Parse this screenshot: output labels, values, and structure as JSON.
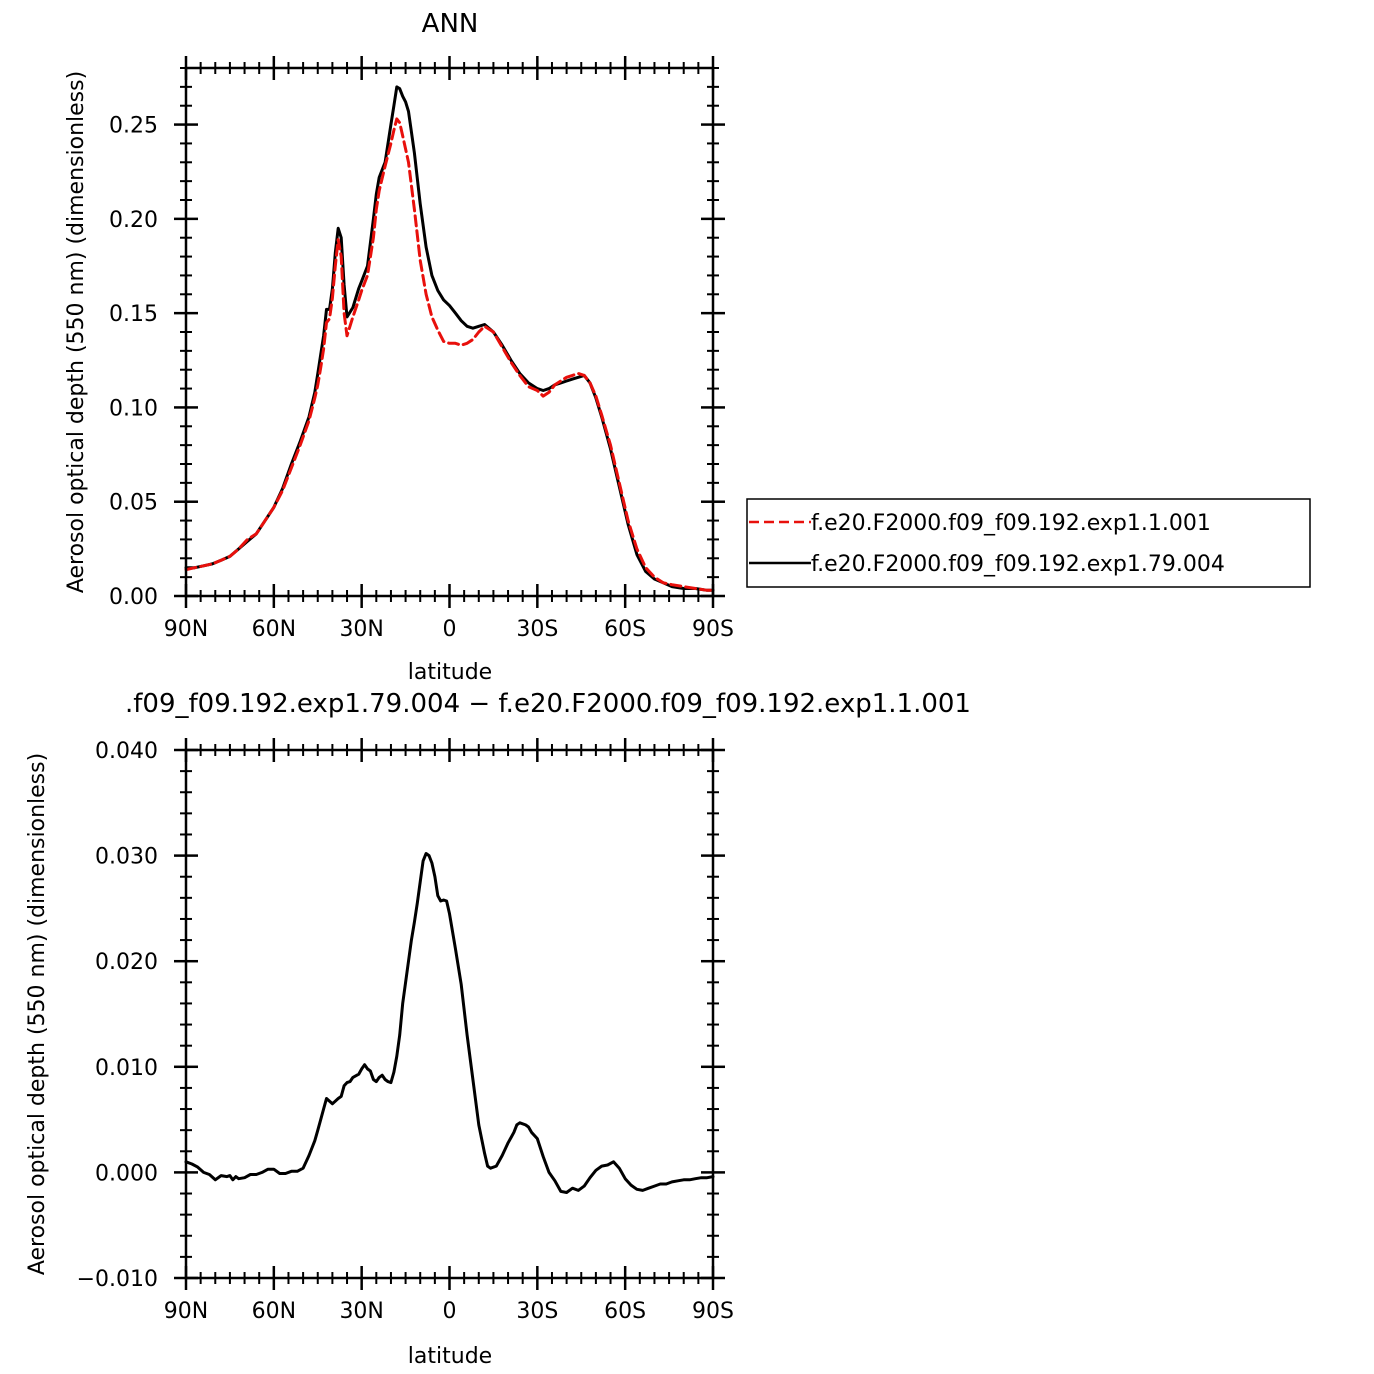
{
  "chart_data": [
    {
      "type": "line",
      "title": "ANN",
      "xlabel": "latitude",
      "ylabel": "Aerosol optical depth (550 nm) (dimensionless)",
      "xlim": [
        90,
        -90
      ],
      "ylim": [
        0,
        0.28
      ],
      "xticks": [
        90,
        60,
        30,
        0,
        -30,
        -60,
        -90
      ],
      "xtick_labels": [
        "90N",
        "60N",
        "30N",
        "0",
        "30S",
        "60S",
        "90S"
      ],
      "yticks": [
        0,
        0.05,
        0.1,
        0.15,
        0.2,
        0.25
      ],
      "ytick_labels": [
        "0.00",
        "0.05",
        "0.10",
        "0.15",
        "0.20",
        "0.25"
      ],
      "legend_position": "right",
      "series": [
        {
          "name": "f.e20.F2000.f09_f09.192.exp1.1.001",
          "color": "#e8100c",
          "dash": "dashed",
          "x": [
            90,
            87,
            84,
            81,
            78,
            75,
            72,
            69,
            66,
            63,
            60,
            57,
            54,
            51,
            48,
            46,
            45,
            44,
            43,
            42,
            41,
            40,
            39,
            38,
            37,
            36,
            35,
            33,
            31,
            30,
            28,
            26,
            25,
            24,
            22,
            20,
            19,
            18,
            17,
            16,
            15,
            14,
            12,
            10,
            8,
            6,
            4,
            2,
            0,
            -2,
            -4,
            -6,
            -8,
            -10,
            -12,
            -15,
            -18,
            -21,
            -24,
            -27,
            -30,
            -32,
            -34,
            -36,
            -38,
            -40,
            -42,
            -44,
            -46,
            -48,
            -50,
            -52,
            -55,
            -58,
            -61,
            -64,
            -67,
            -70,
            -73,
            -76,
            -80,
            -84,
            -88,
            -90
          ],
          "y": [
            0.014,
            0.015,
            0.016,
            0.017,
            0.019,
            0.021,
            0.025,
            0.03,
            0.033,
            0.04,
            0.047,
            0.056,
            0.068,
            0.08,
            0.093,
            0.105,
            0.112,
            0.121,
            0.131,
            0.145,
            0.147,
            0.158,
            0.175,
            0.189,
            0.18,
            0.15,
            0.138,
            0.148,
            0.157,
            0.162,
            0.17,
            0.19,
            0.205,
            0.215,
            0.228,
            0.24,
            0.247,
            0.253,
            0.251,
            0.244,
            0.237,
            0.23,
            0.205,
            0.178,
            0.16,
            0.148,
            0.141,
            0.135,
            0.134,
            0.134,
            0.133,
            0.134,
            0.136,
            0.14,
            0.143,
            0.14,
            0.132,
            0.124,
            0.117,
            0.111,
            0.109,
            0.106,
            0.108,
            0.112,
            0.114,
            0.116,
            0.117,
            0.118,
            0.117,
            0.113,
            0.106,
            0.096,
            0.08,
            0.06,
            0.04,
            0.025,
            0.015,
            0.01,
            0.007,
            0.006,
            0.005,
            0.004,
            0.003,
            0.003
          ]
        },
        {
          "name": "f.e20.F2000.f09_f09.192.exp1.79.004",
          "color": "#000000",
          "dash": "solid",
          "x": [
            90,
            87,
            84,
            81,
            78,
            75,
            72,
            69,
            66,
            63,
            60,
            57,
            54,
            51,
            48,
            46,
            45,
            44,
            43,
            42,
            41,
            40,
            39,
            38,
            37,
            36,
            35,
            33,
            31,
            30,
            28,
            26,
            25,
            24,
            22,
            20,
            19,
            18,
            17,
            16,
            15,
            14,
            12,
            10,
            8,
            6,
            4,
            2,
            0,
            -2,
            -4,
            -6,
            -8,
            -10,
            -12,
            -15,
            -18,
            -21,
            -24,
            -27,
            -30,
            -32,
            -34,
            -36,
            -38,
            -40,
            -42,
            -44,
            -46,
            -48,
            -50,
            -52,
            -55,
            -58,
            -61,
            -64,
            -67,
            -70,
            -73,
            -76,
            -80,
            -84,
            -88,
            -90
          ],
          "y": [
            0.015,
            0.015,
            0.016,
            0.017,
            0.019,
            0.021,
            0.025,
            0.029,
            0.033,
            0.04,
            0.047,
            0.057,
            0.07,
            0.082,
            0.095,
            0.108,
            0.118,
            0.128,
            0.138,
            0.152,
            0.152,
            0.163,
            0.182,
            0.195,
            0.19,
            0.165,
            0.148,
            0.153,
            0.163,
            0.167,
            0.175,
            0.2,
            0.213,
            0.222,
            0.23,
            0.25,
            0.26,
            0.27,
            0.269,
            0.265,
            0.262,
            0.257,
            0.235,
            0.208,
            0.185,
            0.17,
            0.162,
            0.157,
            0.154,
            0.15,
            0.146,
            0.143,
            0.142,
            0.143,
            0.144,
            0.14,
            0.133,
            0.125,
            0.118,
            0.113,
            0.11,
            0.109,
            0.11,
            0.112,
            0.113,
            0.114,
            0.115,
            0.116,
            0.117,
            0.113,
            0.105,
            0.095,
            0.078,
            0.058,
            0.038,
            0.022,
            0.013,
            0.009,
            0.007,
            0.005,
            0.004,
            0.004,
            0.003,
            0.003
          ]
        }
      ]
    },
    {
      "type": "line",
      "title": ".f09_f09.192.exp1.79.004 − f.e20.F2000.f09_f09.192.exp1.1.001",
      "xlabel": "latitude",
      "ylabel": "Aerosol optical depth (550 nm) (dimensionless)",
      "xlim": [
        90,
        -90
      ],
      "ylim": [
        -0.01,
        0.04
      ],
      "xticks": [
        90,
        60,
        30,
        0,
        -30,
        -60,
        -90
      ],
      "xtick_labels": [
        "90N",
        "60N",
        "30N",
        "0",
        "30S",
        "60S",
        "90S"
      ],
      "yticks": [
        -0.01,
        0,
        0.01,
        0.02,
        0.03,
        0.04
      ],
      "ytick_labels": [
        "−0.010",
        "0.000",
        "0.010",
        "0.020",
        "0.030",
        "0.040"
      ],
      "series": [
        {
          "color": "#000000",
          "dash": "solid",
          "x": [
            90,
            88,
            86,
            84,
            82,
            80,
            78,
            76,
            75,
            74,
            73,
            72,
            70,
            68,
            66,
            64,
            62,
            60,
            58,
            56,
            54,
            52,
            50,
            48,
            46,
            45,
            44,
            43,
            42,
            40,
            38,
            37,
            36,
            35,
            34,
            33,
            31,
            30,
            29,
            28,
            27,
            26,
            25,
            24,
            23,
            22,
            21,
            20,
            19,
            18,
            17,
            16,
            15,
            14,
            13,
            12,
            11,
            10,
            9,
            8,
            7,
            6,
            5,
            4,
            3,
            2,
            1,
            0,
            -2,
            -4,
            -6,
            -8,
            -10,
            -12,
            -13,
            -14,
            -16,
            -18,
            -20,
            -21,
            -22,
            -23,
            -24,
            -26,
            -27,
            -28,
            -30,
            -32,
            -34,
            -36,
            -38,
            -40,
            -42,
            -44,
            -46,
            -48,
            -50,
            -52,
            -54,
            -56,
            -58,
            -60,
            -62,
            -64,
            -66,
            -68,
            -70,
            -72,
            -74,
            -76,
            -78,
            -80,
            -82,
            -84,
            -86,
            -88,
            -90
          ],
          "y": [
            0.001,
            0.0008,
            0.0005,
            0.0,
            -0.0002,
            -0.0007,
            -0.0003,
            -0.0004,
            -0.0003,
            -0.0007,
            -0.0004,
            -0.0006,
            -0.0005,
            -0.0002,
            -0.0002,
            0.0,
            0.0003,
            0.0003,
            -0.0001,
            -0.0001,
            0.0001,
            0.0001,
            0.0004,
            0.0016,
            0.003,
            0.004,
            0.005,
            0.006,
            0.007,
            0.0065,
            0.007,
            0.0072,
            0.0082,
            0.0085,
            0.0086,
            0.009,
            0.0093,
            0.0098,
            0.0102,
            0.0098,
            0.0096,
            0.0088,
            0.0086,
            0.009,
            0.0092,
            0.0088,
            0.0086,
            0.0085,
            0.0095,
            0.011,
            0.013,
            0.016,
            0.018,
            0.02,
            0.022,
            0.0237,
            0.0255,
            0.0275,
            0.0295,
            0.0302,
            0.03,
            0.0293,
            0.028,
            0.0262,
            0.0257,
            0.0258,
            0.0257,
            0.0245,
            0.0212,
            0.0178,
            0.013,
            0.0088,
            0.0045,
            0.0018,
            0.0006,
            0.0004,
            0.0006,
            0.0016,
            0.0028,
            0.0033,
            0.0038,
            0.0045,
            0.0047,
            0.0045,
            0.0043,
            0.0038,
            0.0032,
            0.0015,
            0.0,
            -0.0008,
            -0.0018,
            -0.0019,
            -0.0015,
            -0.0017,
            -0.0013,
            -0.0005,
            0.0002,
            0.0006,
            0.0007,
            0.001,
            0.0004,
            -0.0006,
            -0.0012,
            -0.0016,
            -0.0017,
            -0.0015,
            -0.0013,
            -0.0011,
            -0.0011,
            -0.0009,
            -0.0008,
            -0.0007,
            -0.0007,
            -0.0006,
            -0.0005,
            -0.0005,
            -0.0004
          ]
        }
      ]
    }
  ]
}
